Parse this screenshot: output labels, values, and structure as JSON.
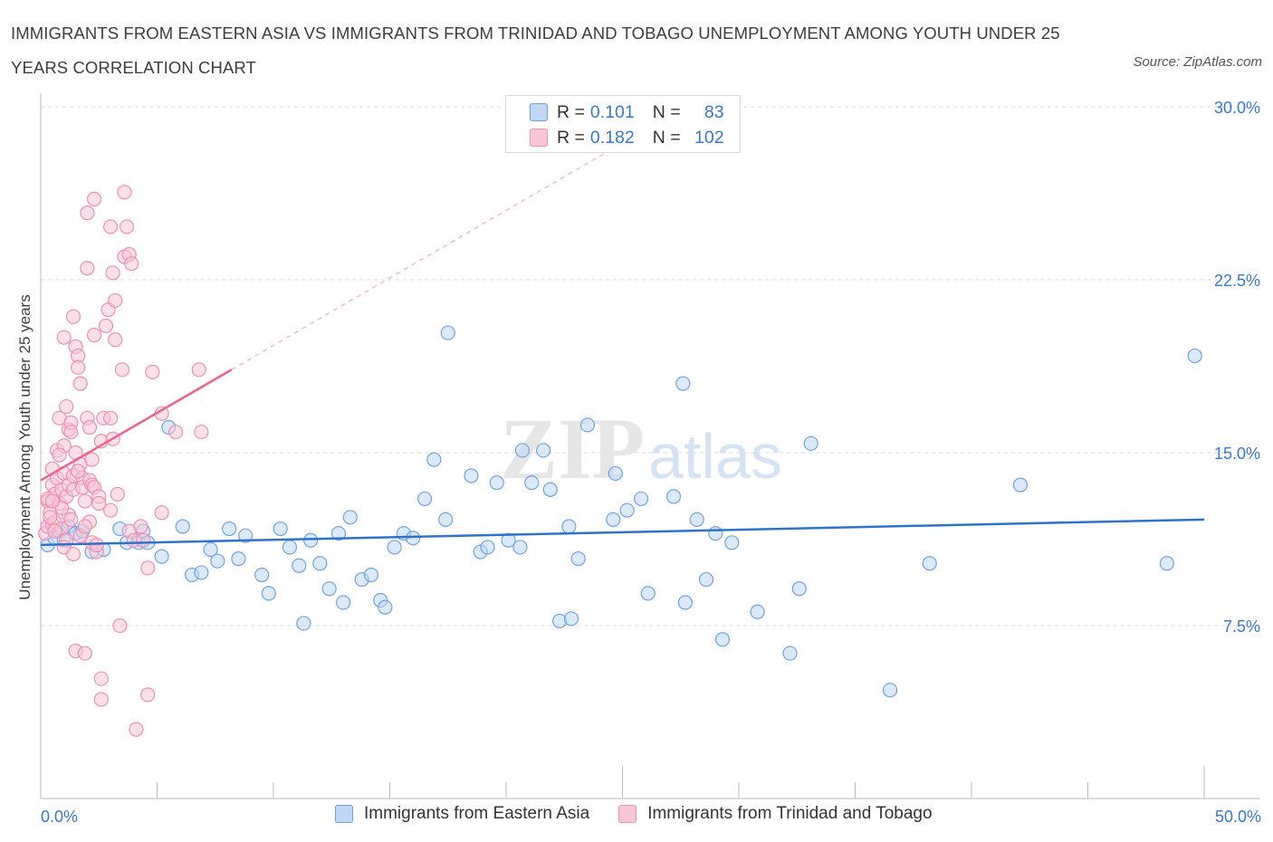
{
  "title": "IMMIGRANTS FROM EASTERN ASIA VS IMMIGRANTS FROM TRINIDAD AND TOBAGO UNEMPLOYMENT AMONG YOUTH UNDER 25 YEARS CORRELATION CHART",
  "source": "Source: ZipAtlas.com",
  "watermark": {
    "zip": "ZIP",
    "atlas": "atlas"
  },
  "legend": {
    "rows": [
      {
        "r_label": "R =",
        "r_value": "0.101",
        "n_label": "N =",
        "n_value": "83"
      },
      {
        "r_label": "R =",
        "r_value": "0.182",
        "n_label": "N =",
        "n_value": "102"
      }
    ]
  },
  "colors": {
    "blue": "#6fa3e0",
    "blue_fill": "#c0d7f4",
    "blue_line": "#2f72cc",
    "pink": "#ec8fb1",
    "pink_fill": "#f7c6d7",
    "pink_line": "#e8668f",
    "axis_text": "#3a78c8",
    "grid": "#d8d8d8"
  },
  "chart_data": {
    "type": "scatter",
    "title": "IMMIGRANTS FROM EASTERN ASIA VS IMMIGRANTS FROM TRINIDAD AND TOBAGO UNEMPLOYMENT AMONG YOUTH UNDER 25 YEARS CORRELATION CHART",
    "xlabel": "",
    "ylabel": "Unemployment Among Youth under 25 years",
    "xlim": [
      0,
      50
    ],
    "ylim": [
      0,
      30
    ],
    "x_tick_labels": [
      "0.0%",
      "50.0%"
    ],
    "y_ticks": [
      7.5,
      15.0,
      22.5,
      30.0
    ],
    "y_tick_labels": [
      "7.5%",
      "15.0%",
      "22.5%",
      "30.0%"
    ],
    "grid": true,
    "legend_position": "top-center",
    "series": [
      {
        "name": "Immigrants from Eastern Asia",
        "R": 0.101,
        "N": 83,
        "trend": {
          "x": [
            0,
            50
          ],
          "y": [
            11.0,
            12.1
          ]
        },
        "points": [
          [
            0.3,
            11.0
          ],
          [
            0.6,
            11.3
          ],
          [
            0.8,
            11.6
          ],
          [
            1.0,
            11.2
          ],
          [
            1.2,
            11.8
          ],
          [
            1.5,
            11.5
          ],
          [
            1.8,
            11.6
          ],
          [
            2.2,
            10.7
          ],
          [
            2.7,
            10.8
          ],
          [
            3.4,
            11.7
          ],
          [
            3.7,
            11.1
          ],
          [
            4.2,
            11.1
          ],
          [
            4.4,
            11.6
          ],
          [
            4.6,
            11.1
          ],
          [
            5.2,
            10.5
          ],
          [
            5.5,
            16.1
          ],
          [
            6.1,
            11.8
          ],
          [
            6.5,
            9.7
          ],
          [
            6.9,
            9.8
          ],
          [
            7.3,
            10.8
          ],
          [
            7.6,
            10.3
          ],
          [
            8.1,
            11.7
          ],
          [
            8.5,
            10.4
          ],
          [
            8.8,
            11.4
          ],
          [
            9.5,
            9.7
          ],
          [
            9.8,
            8.9
          ],
          [
            10.3,
            11.7
          ],
          [
            10.7,
            10.9
          ],
          [
            11.1,
            10.1
          ],
          [
            11.3,
            7.6
          ],
          [
            11.6,
            11.2
          ],
          [
            12.0,
            10.2
          ],
          [
            12.4,
            9.1
          ],
          [
            12.8,
            11.5
          ],
          [
            13.0,
            8.5
          ],
          [
            13.3,
            12.2
          ],
          [
            13.8,
            9.5
          ],
          [
            14.2,
            9.7
          ],
          [
            14.6,
            8.6
          ],
          [
            14.8,
            8.3
          ],
          [
            15.2,
            10.9
          ],
          [
            15.6,
            11.5
          ],
          [
            16.0,
            11.3
          ],
          [
            16.5,
            13.0
          ],
          [
            16.9,
            14.7
          ],
          [
            17.4,
            12.1
          ],
          [
            17.5,
            20.2
          ],
          [
            18.5,
            14.0
          ],
          [
            18.9,
            10.7
          ],
          [
            19.2,
            10.9
          ],
          [
            19.6,
            13.7
          ],
          [
            20.1,
            11.2
          ],
          [
            20.6,
            10.9
          ],
          [
            20.7,
            15.1
          ],
          [
            21.1,
            13.7
          ],
          [
            21.6,
            15.1
          ],
          [
            21.9,
            13.4
          ],
          [
            22.7,
            11.8
          ],
          [
            23.1,
            10.4
          ],
          [
            22.3,
            7.7
          ],
          [
            22.8,
            7.8
          ],
          [
            23.5,
            16.2
          ],
          [
            24.6,
            12.1
          ],
          [
            24.7,
            14.1
          ],
          [
            25.2,
            12.5
          ],
          [
            25.8,
            13.0
          ],
          [
            26.1,
            8.9
          ],
          [
            27.2,
            13.1
          ],
          [
            27.6,
            18.0
          ],
          [
            27.7,
            8.5
          ],
          [
            28.2,
            12.1
          ],
          [
            28.6,
            9.5
          ],
          [
            29.0,
            11.5
          ],
          [
            29.3,
            6.9
          ],
          [
            29.7,
            11.1
          ],
          [
            30.8,
            8.1
          ],
          [
            32.2,
            6.3
          ],
          [
            32.6,
            9.1
          ],
          [
            33.1,
            15.4
          ],
          [
            36.5,
            4.7
          ],
          [
            38.2,
            10.2
          ],
          [
            42.1,
            13.6
          ],
          [
            48.4,
            10.2
          ],
          [
            49.6,
            19.2
          ]
        ]
      },
      {
        "name": "Immigrants from Trinidad and Tobago",
        "R": 0.182,
        "N": 102,
        "trend": {
          "x": [
            0,
            8.2
          ],
          "y": [
            13.8,
            18.6
          ]
        },
        "points": [
          [
            0.2,
            11.5
          ],
          [
            0.3,
            12.9
          ],
          [
            0.3,
            11.8
          ],
          [
            0.4,
            12.4
          ],
          [
            0.5,
            13.6
          ],
          [
            0.5,
            14.3
          ],
          [
            0.5,
            11.9
          ],
          [
            0.6,
            12.0
          ],
          [
            0.6,
            13.2
          ],
          [
            0.7,
            15.1
          ],
          [
            0.7,
            13.9
          ],
          [
            0.8,
            16.5
          ],
          [
            0.8,
            12.8
          ],
          [
            0.9,
            13.4
          ],
          [
            0.9,
            11.7
          ],
          [
            1.0,
            15.3
          ],
          [
            1.0,
            14.1
          ],
          [
            1.0,
            20.0
          ],
          [
            1.1,
            17.0
          ],
          [
            1.1,
            13.1
          ],
          [
            1.1,
            11.2
          ],
          [
            1.2,
            16.0
          ],
          [
            1.2,
            13.6
          ],
          [
            1.2,
            12.3
          ],
          [
            1.3,
            16.3
          ],
          [
            1.3,
            15.9
          ],
          [
            1.4,
            13.4
          ],
          [
            1.4,
            20.9
          ],
          [
            1.4,
            14.0
          ],
          [
            1.5,
            15.0
          ],
          [
            1.5,
            6.4
          ],
          [
            1.5,
            19.6
          ],
          [
            1.6,
            19.2
          ],
          [
            1.6,
            18.7
          ],
          [
            1.7,
            18.0
          ],
          [
            1.7,
            14.5
          ],
          [
            1.8,
            13.9
          ],
          [
            1.8,
            13.5
          ],
          [
            1.9,
            12.9
          ],
          [
            1.9,
            6.3
          ],
          [
            2.0,
            25.4
          ],
          [
            2.0,
            23.0
          ],
          [
            2.0,
            16.5
          ],
          [
            2.1,
            16.1
          ],
          [
            2.1,
            13.8
          ],
          [
            2.2,
            13.6
          ],
          [
            2.2,
            11.1
          ],
          [
            2.3,
            26.0
          ],
          [
            2.3,
            20.1
          ],
          [
            2.3,
            13.5
          ],
          [
            2.4,
            10.7
          ],
          [
            2.4,
            11.0
          ],
          [
            2.5,
            13.1
          ],
          [
            2.6,
            5.2
          ],
          [
            2.6,
            4.3
          ],
          [
            2.6,
            15.5
          ],
          [
            2.7,
            16.5
          ],
          [
            2.8,
            20.5
          ],
          [
            2.9,
            21.2
          ],
          [
            3.0,
            24.8
          ],
          [
            3.0,
            16.5
          ],
          [
            3.0,
            12.5
          ],
          [
            3.1,
            15.6
          ],
          [
            3.1,
            22.8
          ],
          [
            3.2,
            21.6
          ],
          [
            3.2,
            19.9
          ],
          [
            3.3,
            13.2
          ],
          [
            3.4,
            7.5
          ],
          [
            3.5,
            18.6
          ],
          [
            3.6,
            26.3
          ],
          [
            3.6,
            23.5
          ],
          [
            3.7,
            24.8
          ],
          [
            3.8,
            23.6
          ],
          [
            3.9,
            23.2
          ],
          [
            3.8,
            11.6
          ],
          [
            4.0,
            11.2
          ],
          [
            4.1,
            3.0
          ],
          [
            4.3,
            11.8
          ],
          [
            4.4,
            11.2
          ],
          [
            4.6,
            4.5
          ],
          [
            4.6,
            10.0
          ],
          [
            4.8,
            18.5
          ],
          [
            5.2,
            12.4
          ],
          [
            5.2,
            16.7
          ],
          [
            5.8,
            15.9
          ],
          [
            6.8,
            18.6
          ],
          [
            6.9,
            15.9
          ],
          [
            0.4,
            12.2
          ],
          [
            0.6,
            11.6
          ],
          [
            0.9,
            12.6
          ],
          [
            1.3,
            12.1
          ],
          [
            1.7,
            11.4
          ],
          [
            2.1,
            12.0
          ],
          [
            2.5,
            12.8
          ],
          [
            0.3,
            13.0
          ],
          [
            0.8,
            14.9
          ],
          [
            1.6,
            14.2
          ],
          [
            2.2,
            14.7
          ],
          [
            1.0,
            10.9
          ],
          [
            1.4,
            10.6
          ],
          [
            0.5,
            12.9
          ],
          [
            1.9,
            11.8
          ]
        ]
      }
    ]
  },
  "bottom_legend": [
    {
      "label": "Immigrants from Eastern Asia"
    },
    {
      "label": "Immigrants from Trinidad and Tobago"
    }
  ]
}
